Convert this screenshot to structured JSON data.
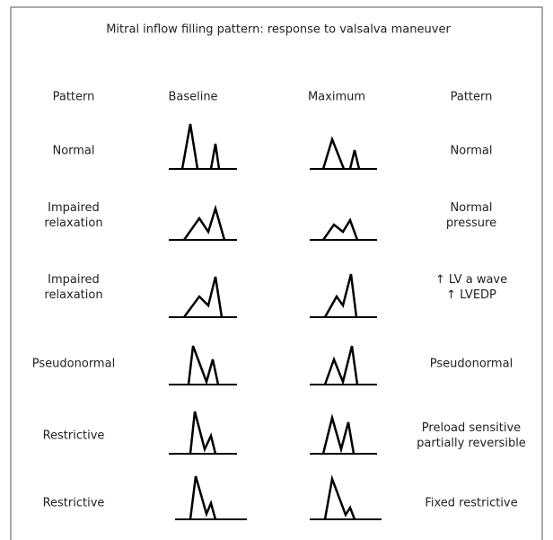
{
  "title": "Mitral inflow filling pattern: response to valsalva maneuver",
  "headers": [
    "Pattern",
    "Baseline",
    "Maximum",
    "Pattern"
  ],
  "rows": [
    {
      "left": [
        "Normal"
      ],
      "right": [
        "Normal"
      ]
    },
    {
      "left": [
        "Impaired",
        "relaxation"
      ],
      "right": [
        "Normal",
        "pressure"
      ]
    },
    {
      "left": [
        "Impaired",
        "relaxation"
      ],
      "right": [
        "↑  LV a wave",
        "↑  LVEDP"
      ]
    },
    {
      "left": [
        "Pseudonormal"
      ],
      "right": [
        "Pseudonormal"
      ]
    },
    {
      "left": [
        "Restrictive"
      ],
      "right": [
        "Preload sensitive",
        "partially reversible"
      ]
    },
    {
      "left": [
        "Restrictive"
      ],
      "right": [
        "Fixed restrictive"
      ]
    }
  ]
}
